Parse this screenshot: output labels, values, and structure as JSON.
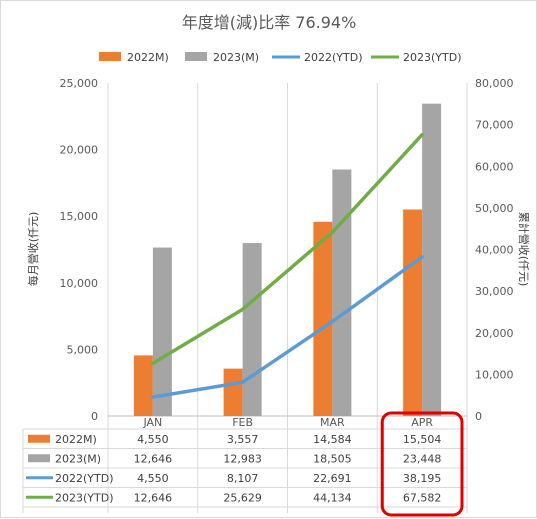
{
  "chart_data": {
    "type": "bar",
    "title": "年度增(減)比率 76.94%",
    "categories": [
      "JAN",
      "FEB",
      "MAR",
      "APR"
    ],
    "y_left": {
      "label": "每月營收(仟元)",
      "lim": [
        0,
        25000
      ],
      "ticks": [
        "0",
        "5,000",
        "10,000",
        "15,000",
        "20,000",
        "25,000"
      ]
    },
    "y_right": {
      "label": "累計營收(仟元)",
      "lim": [
        0,
        80000
      ],
      "ticks": [
        "0",
        "10,000",
        "20,000",
        "30,000",
        "40,000",
        "50,000",
        "60,000",
        "70,000",
        "80,000"
      ]
    },
    "series": [
      {
        "name": "2022M)",
        "kind": "bar",
        "axis": "left",
        "color": "#ed7d31",
        "values": [
          4550,
          3557,
          14584,
          15504
        ],
        "labels": [
          "4,550",
          "3,557",
          "14,584",
          "15,504"
        ]
      },
      {
        "name": "2023(M)",
        "kind": "bar",
        "axis": "left",
        "color": "#a5a5a5",
        "values": [
          12646,
          12983,
          18505,
          23448
        ],
        "labels": [
          "12,646",
          "12,983",
          "18,505",
          "23,448"
        ]
      },
      {
        "name": "2022(YTD)",
        "kind": "line",
        "axis": "right",
        "color": "#5b9bd5",
        "values": [
          4550,
          8107,
          22691,
          38195
        ],
        "labels": [
          "4,550",
          "8,107",
          "22,691",
          "38,195"
        ]
      },
      {
        "name": "2023(YTD)",
        "kind": "line",
        "axis": "right",
        "color": "#70ad47",
        "values": [
          12646,
          25629,
          44134,
          67582
        ],
        "labels": [
          "12,646",
          "25,629",
          "44,134",
          "67,582"
        ]
      }
    ],
    "highlight": {
      "category": "APR",
      "color": "#e00000"
    },
    "legend": "top",
    "grid": "vertical"
  }
}
